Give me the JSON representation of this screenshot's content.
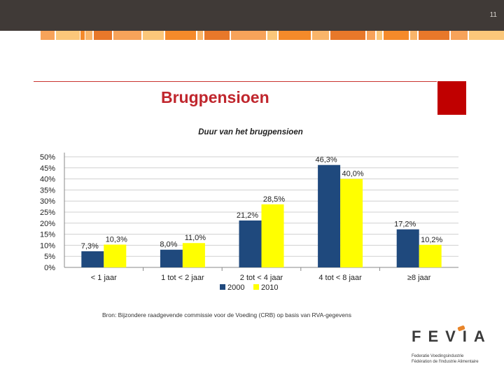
{
  "slide": {
    "number": "11",
    "title": "Brugpensioen"
  },
  "colors": {
    "series_2000": "#1f497d",
    "series_2010": "#ffff00",
    "accent": "#c00000",
    "logo_orange": "#e8852a"
  },
  "stripe": {
    "colors": [
      "#f7a35a",
      "#fbc77a",
      "#f58a2a",
      "#f9b56a",
      "#e8782a"
    ]
  },
  "chart_data": {
    "type": "bar",
    "title": "Duur van het brugpensioen",
    "categories": [
      "< 1 jaar",
      "1 tot < 2 jaar",
      "2 tot < 4 jaar",
      "4 tot < 8 jaar",
      "≥8 jaar"
    ],
    "series": [
      {
        "name": "2000",
        "values": [
          7.3,
          8.0,
          21.2,
          46.3,
          17.2
        ],
        "labels": [
          "7,3%",
          "8,0%",
          "21,2%",
          "46,3%",
          "17,2%"
        ]
      },
      {
        "name": "2010",
        "values": [
          10.3,
          11.0,
          28.5,
          40.0,
          10.2
        ],
        "labels": [
          "10,3%",
          "11,0%",
          "28,5%",
          "40,0%",
          "10,2%"
        ]
      }
    ],
    "yticks": [
      "0%",
      "5%",
      "10%",
      "15%",
      "20%",
      "25%",
      "30%",
      "35%",
      "40%",
      "45%",
      "50%"
    ],
    "ylim": [
      0,
      50
    ],
    "legend": "bottom",
    "grid": true
  },
  "source_text": "Bron: Bijzondere raadgevende commissie voor de Voeding (CRB) op basis van RVA-gegevens",
  "logo": {
    "wordmark": "FEVIA",
    "line1": "Federatie Voedingsindustrie",
    "line2": "Fédération de l'Industrie Alimentaire"
  }
}
